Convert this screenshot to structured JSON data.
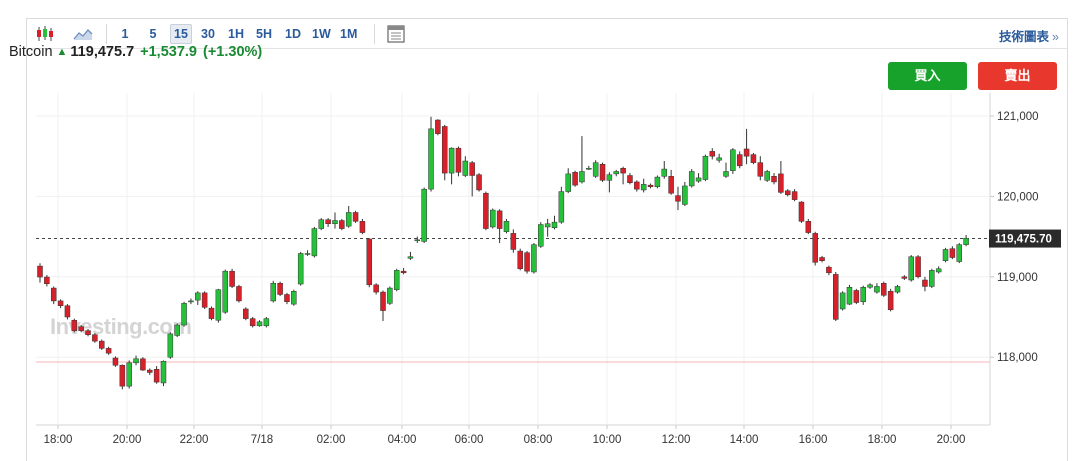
{
  "toolbar": {
    "candle_icon": "candlestick-icon",
    "area_icon": "area-chart-icon",
    "intervals": [
      "1",
      "5",
      "15",
      "30",
      "1H",
      "5H",
      "1D",
      "1W",
      "1M"
    ],
    "active_interval": "15",
    "indicator_icon": "indicator-panel-icon",
    "tech_label": "技術圖表",
    "tech_arrow": "»"
  },
  "quote": {
    "name": "Bitcoin",
    "price": "119,475.7",
    "change": "+1,537.9",
    "change_pct": "(+1.30%)"
  },
  "actions": {
    "buy": "買入",
    "sell": "賣出"
  },
  "colors": {
    "up": "#27c03b",
    "down": "#d8202a",
    "up_text": "#1a8a33",
    "buy": "#17a22b",
    "sell": "#e8372c"
  },
  "chart_data": {
    "type": "candlestick",
    "instrument": "Bitcoin",
    "interval": "15",
    "x_tick_labels": [
      "18:00",
      "20:00",
      "22:00",
      "7/18",
      "02:00",
      "04:00",
      "06:00",
      "08:00",
      "10:00",
      "12:00",
      "14:00",
      "16:00",
      "18:00",
      "20:00"
    ],
    "y_tick_labels": [
      "121,000",
      "120,000",
      "119,000",
      "118,000"
    ],
    "y_ticks": [
      121000,
      120000,
      119000,
      118000
    ],
    "ylim": [
      117200,
      121500
    ],
    "last_price": 119475.7,
    "last_price_label": "119,475.70",
    "reference_level": 117940,
    "watermark": "Investing.com",
    "candles": [
      [
        119133,
        118997,
        119169,
        118928
      ],
      [
        118997,
        118914,
        119023,
        118880
      ],
      [
        118860,
        118700,
        118880,
        118660
      ],
      [
        118700,
        118640,
        118720,
        118610
      ],
      [
        118640,
        118500,
        118660,
        118470
      ],
      [
        118460,
        118330,
        118480,
        118310
      ],
      [
        118380,
        118330,
        118400,
        118310
      ],
      [
        118330,
        118280,
        118350,
        118260
      ],
      [
        118280,
        118200,
        118300,
        118180
      ],
      [
        118200,
        118110,
        118220,
        118090
      ],
      [
        118110,
        118050,
        118130,
        118030
      ],
      [
        117990,
        117900,
        118010,
        117880
      ],
      [
        117900,
        117640,
        117910,
        117600
      ],
      [
        117640,
        117930,
        117960,
        117610
      ],
      [
        117930,
        117980,
        118020,
        117900
      ],
      [
        117980,
        117840,
        118000,
        117830
      ],
      [
        117840,
        117810,
        117860,
        117780
      ],
      [
        117850,
        117690,
        117890,
        117670
      ],
      [
        117680,
        117950,
        117960,
        117640
      ],
      [
        118000,
        118290,
        118310,
        117980
      ],
      [
        118270,
        118400,
        118420,
        118250
      ],
      [
        118400,
        118670,
        118690,
        118380
      ],
      [
        118700,
        118700,
        118730,
        118660
      ],
      [
        118710,
        118800,
        118820,
        118650
      ],
      [
        118800,
        118620,
        118820,
        118600
      ],
      [
        118610,
        118480,
        118630,
        118460
      ],
      [
        118460,
        118840,
        118850,
        118430
      ],
      [
        118560,
        119070,
        119090,
        118540
      ],
      [
        119070,
        118880,
        119100,
        118860
      ],
      [
        118880,
        118700,
        118900,
        118680
      ],
      [
        118600,
        118480,
        118620,
        118460
      ],
      [
        118480,
        118390,
        118500,
        118370
      ],
      [
        118390,
        118440,
        118460,
        118380
      ],
      [
        118390,
        118480,
        118500,
        118370
      ],
      [
        118700,
        118920,
        118950,
        118680
      ],
      [
        118920,
        118780,
        118940,
        118760
      ],
      [
        118780,
        118690,
        118800,
        118660
      ],
      [
        118660,
        118820,
        118840,
        118640
      ],
      [
        118910,
        119290,
        119310,
        118890
      ],
      [
        119290,
        119290,
        119330,
        119260
      ],
      [
        119260,
        119600,
        119620,
        119240
      ],
      [
        119600,
        119710,
        119730,
        119580
      ],
      [
        119710,
        119660,
        119730,
        119620
      ],
      [
        119660,
        119700,
        119800,
        119600
      ],
      [
        119700,
        119600,
        119720,
        119580
      ],
      [
        119630,
        119800,
        119880,
        119610
      ],
      [
        119800,
        119690,
        119820,
        119670
      ],
      [
        119690,
        119550,
        119720,
        119530
      ],
      [
        119470,
        118900,
        119480,
        118870
      ],
      [
        118900,
        118810,
        118920,
        118780
      ],
      [
        118810,
        118580,
        118830,
        118450
      ],
      [
        118670,
        118860,
        118880,
        118650
      ],
      [
        118840,
        119080,
        119100,
        118820
      ],
      [
        119070,
        119050,
        119110,
        119030
      ],
      [
        119230,
        119250,
        119310,
        119210
      ],
      [
        119460,
        119460,
        119500,
        119420
      ],
      [
        119440,
        120090,
        120110,
        119420
      ],
      [
        120090,
        120840,
        120990,
        120060
      ],
      [
        120950,
        120780,
        120960,
        120760
      ],
      [
        120870,
        120290,
        120890,
        120200
      ],
      [
        120290,
        120600,
        120610,
        120150
      ],
      [
        120600,
        120300,
        120620,
        120250
      ],
      [
        120260,
        120440,
        120500,
        120240
      ],
      [
        120420,
        120260,
        120440,
        120000
      ],
      [
        120270,
        120080,
        120290,
        120060
      ],
      [
        120040,
        119600,
        120060,
        119580
      ],
      [
        119620,
        119830,
        119850,
        119600
      ],
      [
        119820,
        119600,
        119840,
        119420
      ],
      [
        119560,
        119690,
        119720,
        119540
      ],
      [
        119540,
        119340,
        119590,
        119300
      ],
      [
        119320,
        119100,
        119350,
        119080
      ],
      [
        119300,
        119070,
        119320,
        119040
      ],
      [
        119060,
        119400,
        119420,
        119040
      ],
      [
        119380,
        119650,
        119680,
        119360
      ],
      [
        119620,
        119660,
        119720,
        119500
      ],
      [
        119610,
        119680,
        119760,
        119590
      ],
      [
        119680,
        120060,
        120120,
        119660
      ],
      [
        120060,
        120280,
        120350,
        120040
      ],
      [
        120300,
        120140,
        120320,
        120120
      ],
      [
        120180,
        120310,
        120750,
        120160
      ],
      [
        120350,
        120350,
        120380,
        120330
      ],
      [
        120250,
        120420,
        120450,
        120230
      ],
      [
        120400,
        120200,
        120420,
        120180
      ],
      [
        120200,
        120270,
        120300,
        120050
      ],
      [
        120280,
        120310,
        120330,
        120250
      ],
      [
        120350,
        120290,
        120370,
        120150
      ],
      [
        120260,
        120170,
        120290,
        120150
      ],
      [
        120180,
        120090,
        120200,
        120060
      ],
      [
        120080,
        120150,
        120220,
        120050
      ],
      [
        120140,
        120120,
        120160,
        120100
      ],
      [
        120120,
        120240,
        120260,
        120100
      ],
      [
        120250,
        120340,
        120440,
        120220
      ],
      [
        120250,
        120040,
        120330,
        120020
      ],
      [
        120010,
        119940,
        120120,
        119830
      ],
      [
        119900,
        120130,
        120180,
        119880
      ],
      [
        120130,
        120310,
        120340,
        120110
      ],
      [
        120190,
        120230,
        120290,
        120170
      ],
      [
        120210,
        120500,
        120520,
        120190
      ],
      [
        120560,
        120500,
        120600,
        120460
      ],
      [
        120450,
        120480,
        120530,
        120420
      ],
      [
        120250,
        120310,
        120420,
        120230
      ],
      [
        120320,
        120580,
        120600,
        120280
      ],
      [
        120520,
        120380,
        120560,
        120350
      ],
      [
        120590,
        120500,
        120840,
        120400
      ],
      [
        120520,
        120420,
        120540,
        120400
      ],
      [
        120420,
        120250,
        120500,
        120200
      ],
      [
        120200,
        120310,
        120330,
        120180
      ],
      [
        120250,
        120180,
        120290,
        120150
      ],
      [
        120280,
        120050,
        120440,
        120030
      ],
      [
        120070,
        120020,
        120090,
        120000
      ],
      [
        120060,
        119960,
        120090,
        119940
      ],
      [
        119930,
        119690,
        119940,
        119670
      ],
      [
        119690,
        119550,
        119720,
        119530
      ],
      [
        119540,
        119180,
        119560,
        119140
      ],
      [
        119240,
        119200,
        119260,
        119180
      ],
      [
        119120,
        119050,
        119140,
        119020
      ],
      [
        119030,
        118470,
        119060,
        118450
      ],
      [
        118600,
        118800,
        118820,
        118580
      ],
      [
        118660,
        118870,
        118900,
        118650
      ],
      [
        118830,
        118680,
        118850,
        118660
      ],
      [
        118690,
        118870,
        118890,
        118650
      ],
      [
        118870,
        118900,
        118920,
        118850
      ],
      [
        118810,
        118880,
        118920,
        118790
      ],
      [
        118920,
        118770,
        118940,
        118750
      ],
      [
        118820,
        118590,
        118850,
        118570
      ],
      [
        118810,
        118880,
        118900,
        118790
      ],
      [
        119000,
        118980,
        119020,
        118960
      ],
      [
        118960,
        119250,
        119270,
        118940
      ],
      [
        119250,
        119000,
        119270,
        118980
      ],
      [
        118960,
        118880,
        119000,
        118820
      ],
      [
        118880,
        119080,
        119100,
        118860
      ],
      [
        119060,
        119100,
        119130,
        119040
      ],
      [
        119200,
        119340,
        119360,
        119180
      ],
      [
        119350,
        119240,
        119380,
        119220
      ],
      [
        119190,
        119400,
        119420,
        119170
      ],
      [
        119400,
        119480,
        119520,
        119380
      ]
    ]
  }
}
